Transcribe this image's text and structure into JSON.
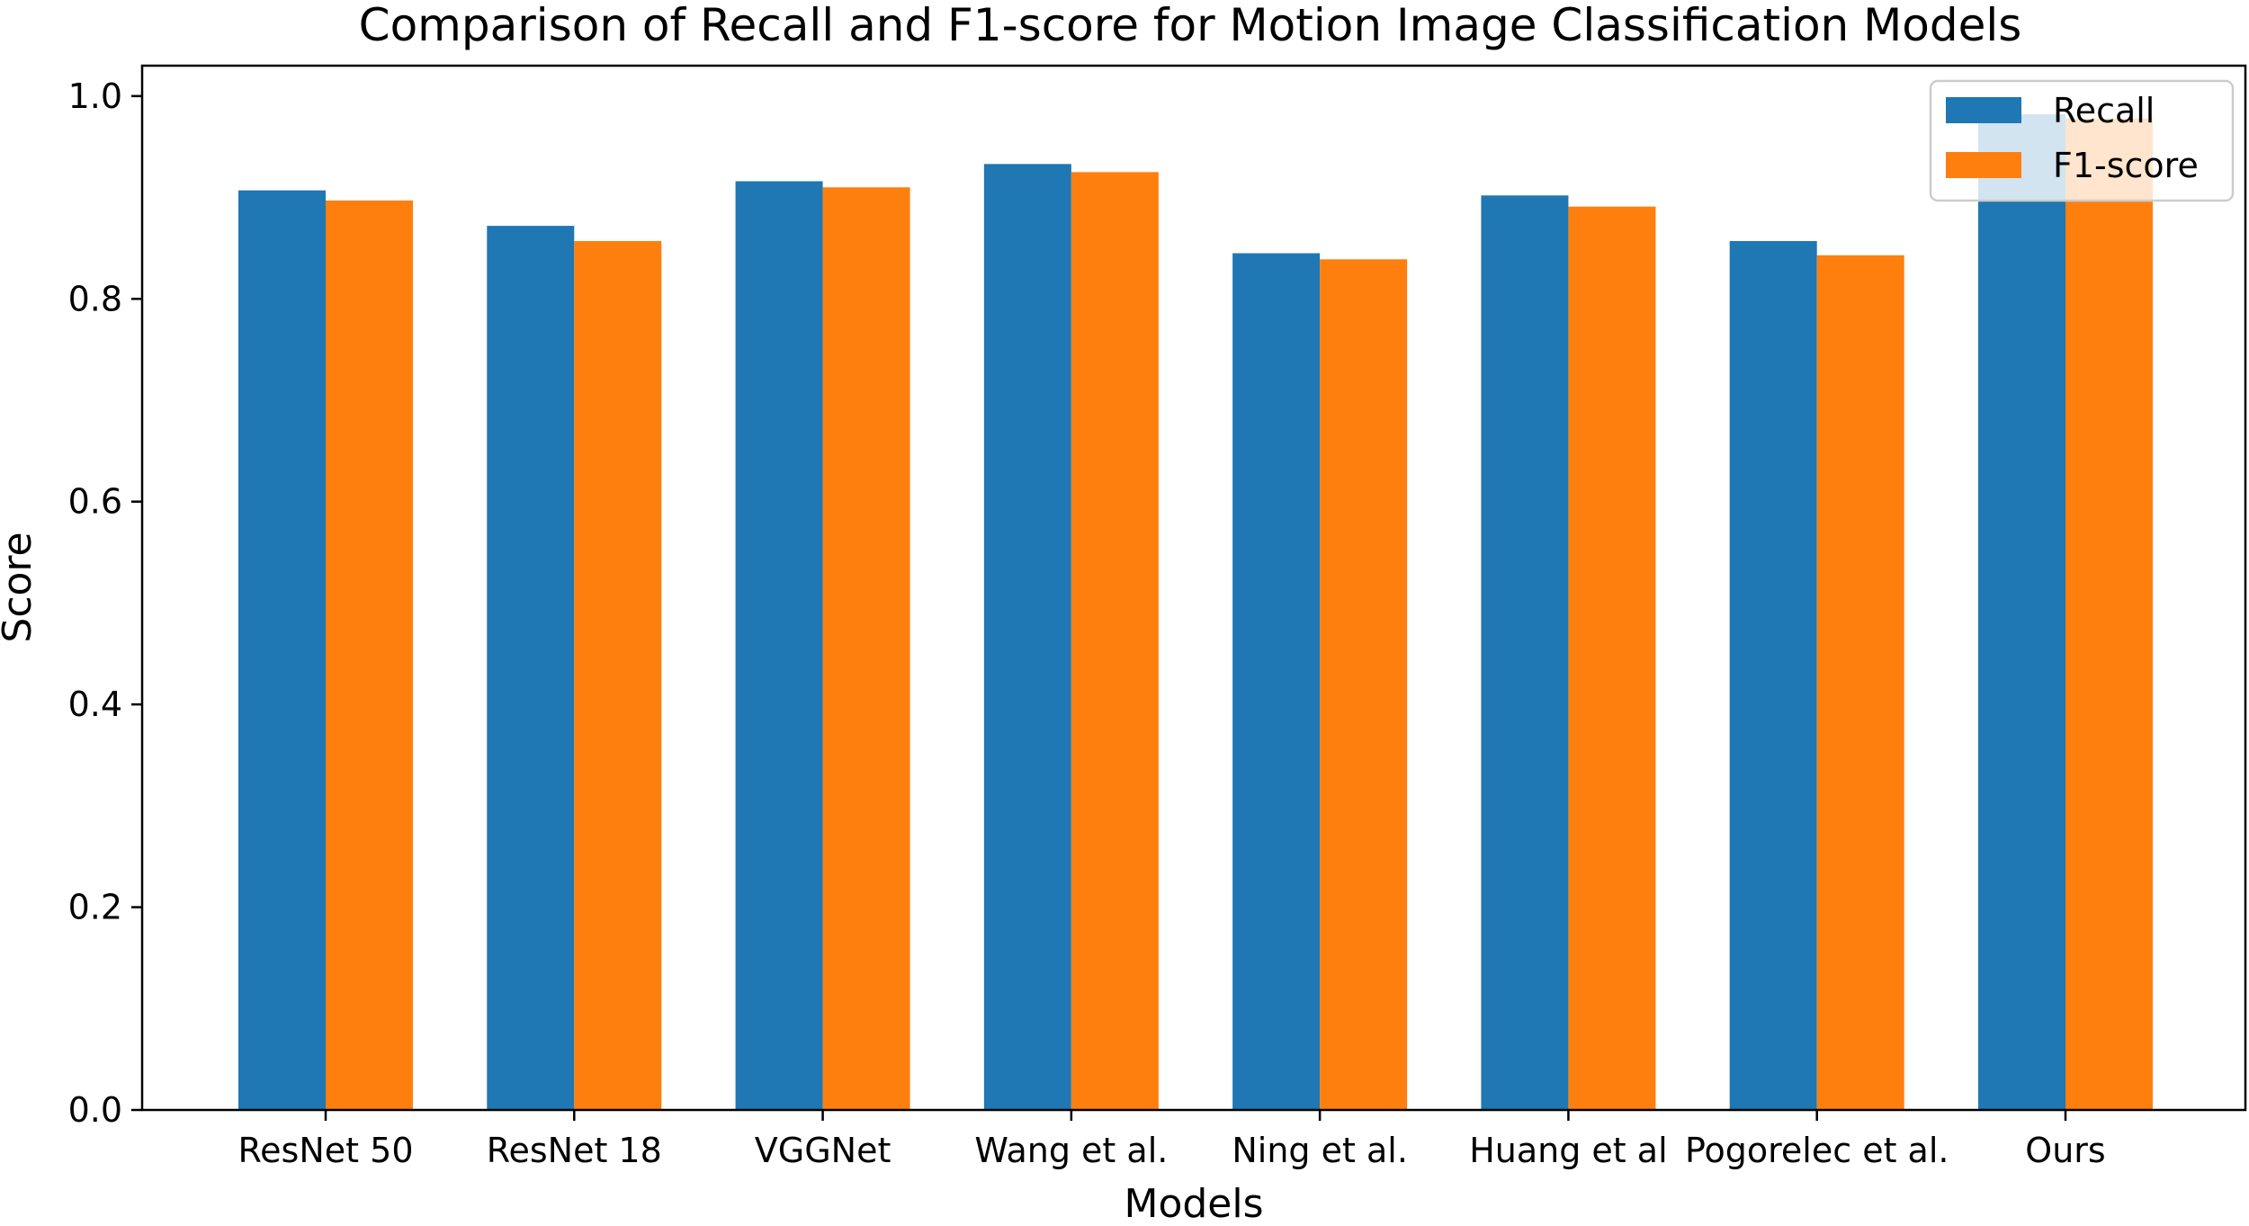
{
  "chart_data": {
    "type": "bar",
    "title": "Comparison of Recall and F1-score for Motion Image Classification Models",
    "xlabel": "Models",
    "ylabel": "Score",
    "categories": [
      "ResNet 50",
      "ResNet 18",
      "VGGNet",
      "Wang et al.",
      "Ning et al.",
      "Huang et al",
      "Pogorelec et al.",
      "Ours"
    ],
    "series": [
      {
        "name": "Recall",
        "color": "#1f77b4",
        "values": [
          0.907,
          0.872,
          0.916,
          0.933,
          0.845,
          0.902,
          0.857,
          0.982
        ]
      },
      {
        "name": "F1-score",
        "color": "#ff7f0e",
        "values": [
          0.897,
          0.857,
          0.91,
          0.925,
          0.839,
          0.891,
          0.843,
          0.978
        ]
      }
    ],
    "ylim": [
      0,
      1.03
    ],
    "yticks": [
      "0.0",
      "0.2",
      "0.4",
      "0.6",
      "0.8",
      "1.0"
    ],
    "grid": false,
    "legend_position": "top-right"
  }
}
